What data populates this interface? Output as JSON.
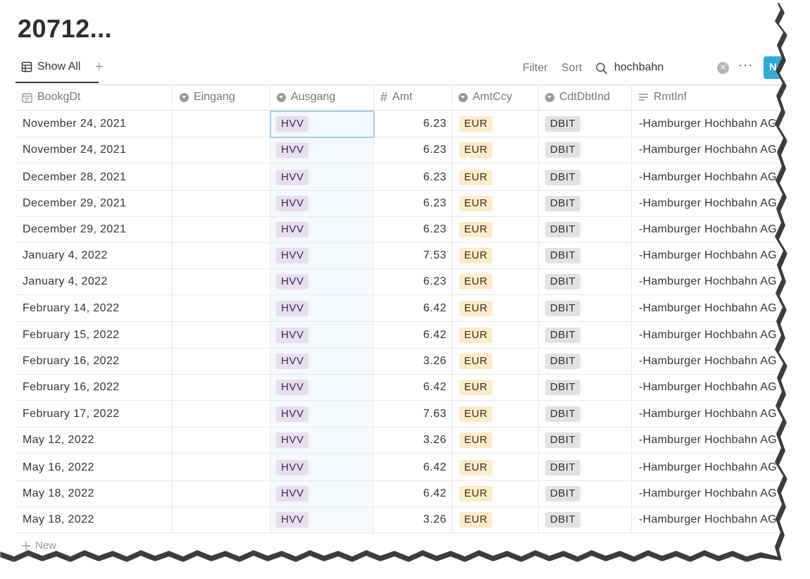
{
  "page": {
    "title": "20712..."
  },
  "toolbar": {
    "view_label": "Show All",
    "add_view": "+",
    "filter_label": "Filter",
    "sort_label": "Sort",
    "search_value": "hochbahn",
    "more_label": "···",
    "new_label": "Ne"
  },
  "columns": [
    {
      "label": "BookgDt",
      "icon": "calendar-icon"
    },
    {
      "label": "Eingang",
      "icon": "select-icon"
    },
    {
      "label": "Ausgang",
      "icon": "select-icon"
    },
    {
      "label": "Amt",
      "icon": "hash-icon"
    },
    {
      "label": "AmtCcy",
      "icon": "select-icon"
    },
    {
      "label": "CdtDbtInd",
      "icon": "select-icon"
    },
    {
      "label": "RmtInf",
      "icon": "text-lines-icon"
    }
  ],
  "rows": [
    {
      "date": "November 24, 2021",
      "ausgang": "HVV",
      "amt": "6.23",
      "ccy": "EUR",
      "ind": "DBIT",
      "rmt": "-Hamburger Hochbahn AG"
    },
    {
      "date": "November 24, 2021",
      "ausgang": "HVV",
      "amt": "6.23",
      "ccy": "EUR",
      "ind": "DBIT",
      "rmt": "-Hamburger Hochbahn AG"
    },
    {
      "date": "December 28, 2021",
      "ausgang": "HVV",
      "amt": "6.23",
      "ccy": "EUR",
      "ind": "DBIT",
      "rmt": "-Hamburger Hochbahn AG"
    },
    {
      "date": "December 29, 2021",
      "ausgang": "HVV",
      "amt": "6.23",
      "ccy": "EUR",
      "ind": "DBIT",
      "rmt": "-Hamburger Hochbahn AG"
    },
    {
      "date": "December 29, 2021",
      "ausgang": "HVV",
      "amt": "6.23",
      "ccy": "EUR",
      "ind": "DBIT",
      "rmt": "-Hamburger Hochbahn AG"
    },
    {
      "date": "January 4, 2022",
      "ausgang": "HVV",
      "amt": "7.53",
      "ccy": "EUR",
      "ind": "DBIT",
      "rmt": "-Hamburger Hochbahn AG"
    },
    {
      "date": "January 4, 2022",
      "ausgang": "HVV",
      "amt": "6.23",
      "ccy": "EUR",
      "ind": "DBIT",
      "rmt": "-Hamburger Hochbahn AG"
    },
    {
      "date": "February 14, 2022",
      "ausgang": "HVV",
      "amt": "6.42",
      "ccy": "EUR",
      "ind": "DBIT",
      "rmt": "-Hamburger Hochbahn AG"
    },
    {
      "date": "February 15, 2022",
      "ausgang": "HVV",
      "amt": "6.42",
      "ccy": "EUR",
      "ind": "DBIT",
      "rmt": "-Hamburger Hochbahn AG"
    },
    {
      "date": "February 16, 2022",
      "ausgang": "HVV",
      "amt": "3.26",
      "ccy": "EUR",
      "ind": "DBIT",
      "rmt": "-Hamburger Hochbahn AG"
    },
    {
      "date": "February 16, 2022",
      "ausgang": "HVV",
      "amt": "6.42",
      "ccy": "EUR",
      "ind": "DBIT",
      "rmt": "-Hamburger Hochbahn AG"
    },
    {
      "date": "February 17, 2022",
      "ausgang": "HVV",
      "amt": "7.63",
      "ccy": "EUR",
      "ind": "DBIT",
      "rmt": "-Hamburger Hochbahn AG"
    },
    {
      "date": "May 12, 2022",
      "ausgang": "HVV",
      "amt": "3.26",
      "ccy": "EUR",
      "ind": "DBIT",
      "rmt": "-Hamburger Hochbahn AG"
    },
    {
      "date": "May 16, 2022",
      "ausgang": "HVV",
      "amt": "6.42",
      "ccy": "EUR",
      "ind": "DBIT",
      "rmt": "-Hamburger Hochbahn AG"
    },
    {
      "date": "May 18, 2022",
      "ausgang": "HVV",
      "amt": "6.42",
      "ccy": "EUR",
      "ind": "DBIT",
      "rmt": "-Hamburger Hochbahn AG"
    },
    {
      "date": "May 18, 2022",
      "ausgang": "HVV",
      "amt": "3.26",
      "ccy": "EUR",
      "ind": "DBIT",
      "rmt": "-Hamburger Hochbahn AG"
    }
  ],
  "footer": {
    "new_row_label": "New"
  },
  "colors": {
    "accent": "#2eaadc",
    "tag_hvv": "#e8deee",
    "tag_eur": "#fdecc8",
    "tag_dbit": "#e3e2e0"
  }
}
